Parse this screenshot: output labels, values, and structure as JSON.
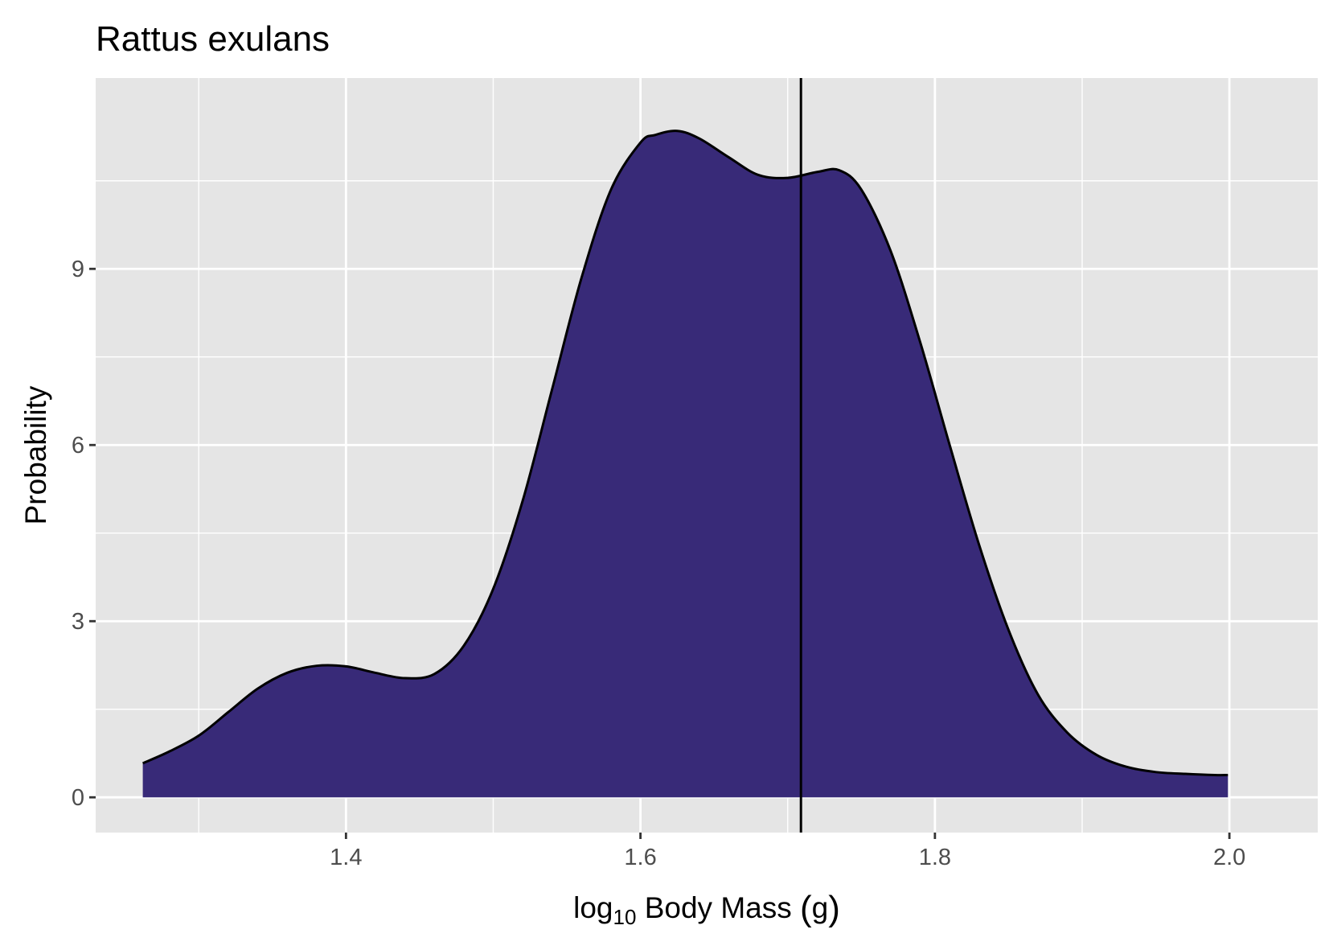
{
  "chart_data": {
    "type": "area",
    "title": "Rattus exulans",
    "xlabel_prefix": "log",
    "xlabel_subscript": "10",
    "xlabel_rest": " Body Mass ",
    "xlabel_paren_open": "(",
    "xlabel_unit": "g",
    "xlabel_paren_close": ")",
    "ylabel": "Probability",
    "xlim": [
      1.23,
      2.06
    ],
    "ylim": [
      -0.6,
      12.25
    ],
    "x_ticks": [
      1.4,
      1.6,
      1.8,
      2.0
    ],
    "x_tick_labels": [
      "1.4",
      "1.6",
      "1.8",
      "2.0"
    ],
    "y_ticks": [
      0,
      3,
      6,
      9
    ],
    "y_tick_labels": [
      "0",
      "3",
      "6",
      "9"
    ],
    "x_minor_ticks": [
      1.3,
      1.5,
      1.7,
      1.9
    ],
    "y_minor_ticks": [
      1.5,
      4.5,
      7.5,
      10.5
    ],
    "grid": true,
    "fill_color": "#382a78",
    "line_color": "#000000",
    "panel_color": "#e5e5e5",
    "vline_x": 1.709,
    "series": [
      {
        "x": [
          1.262,
          1.28,
          1.3,
          1.32,
          1.34,
          1.36,
          1.38,
          1.4,
          1.42,
          1.44,
          1.46,
          1.48,
          1.5,
          1.52,
          1.54,
          1.56,
          1.58,
          1.6,
          1.61,
          1.625,
          1.64,
          1.66,
          1.68,
          1.7,
          1.72,
          1.735,
          1.75,
          1.77,
          1.79,
          1.81,
          1.83,
          1.85,
          1.87,
          1.89,
          1.91,
          1.93,
          1.95,
          1.97,
          1.99,
          1.999
        ],
        "y": [
          0.58,
          0.78,
          1.05,
          1.45,
          1.85,
          2.12,
          2.24,
          2.23,
          2.12,
          2.03,
          2.1,
          2.58,
          3.55,
          5.05,
          6.95,
          8.85,
          10.35,
          11.15,
          11.28,
          11.35,
          11.22,
          10.9,
          10.6,
          10.55,
          10.65,
          10.68,
          10.35,
          9.3,
          7.75,
          6.0,
          4.3,
          2.85,
          1.75,
          1.1,
          0.72,
          0.52,
          0.43,
          0.4,
          0.38,
          0.38
        ]
      }
    ]
  }
}
